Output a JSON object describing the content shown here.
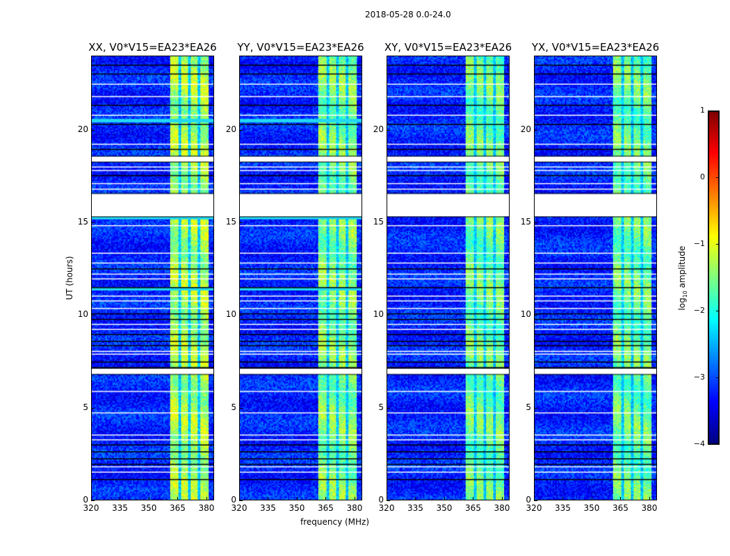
{
  "chart_data": {
    "type": "heatmap",
    "title": "2018-05-28 0.0-24.0",
    "xlabel": "frequency (MHz)",
    "ylabel": "UT (hours)",
    "xlim": [
      320,
      384
    ],
    "ylim": [
      0,
      24
    ],
    "xticks": [
      "320",
      "335",
      "350",
      "365",
      "380"
    ],
    "xtick_values": [
      320,
      335,
      350,
      365,
      380
    ],
    "yticks": [
      "0",
      "5",
      "10",
      "15",
      "20"
    ],
    "ytick_values": [
      0,
      5,
      10,
      15,
      20
    ],
    "panels": [
      {
        "title": "XX, V0*V15=EA23*EA26",
        "band_level": -1.3,
        "cyan_rows": [
          20.5,
          15.25,
          11.4
        ]
      },
      {
        "title": "YY, V0*V15=EA23*EA26",
        "band_level": -1.5,
        "cyan_rows": [
          20.5,
          15.25,
          11.4
        ]
      },
      {
        "title": "XY, V0*V15=EA23*EA26",
        "band_level": -1.6,
        "cyan_rows": []
      },
      {
        "title": "YX, V0*V15=EA23*EA26",
        "band_level": -1.6,
        "cyan_rows": []
      }
    ],
    "rfi_band_mhz": [
      361,
      381
    ],
    "band_gaps_mhz": [
      366,
      371,
      376
    ],
    "background_level": -3.2,
    "flagged_ranges_hours": [
      [
        15.33,
        16.56
      ],
      [
        18.3,
        18.58
      ],
      [
        6.8,
        7.1
      ]
    ],
    "flagged_lines_hours": [
      22.5,
      21.83,
      20.82,
      19.25,
      18.02,
      17.83,
      17.12,
      16.82,
      14.84,
      13.35,
      12.82,
      12.22,
      11.96,
      11.03,
      10.77,
      10.36,
      9.5,
      9.23,
      8.04,
      7.89,
      5.87,
      4.71,
      3.51,
      3.25,
      1.79,
      1.5
    ],
    "dark_lines_hours": [
      23.55,
      23.07,
      21.38,
      20.34,
      18.99,
      17.57,
      12.52,
      11.51,
      10.09,
      9.79,
      8.97,
      8.6,
      8.37,
      7.48,
      7.18,
      2.99,
      2.62,
      2.24,
      1.94,
      1.12
    ],
    "colorbar": {
      "label": "log10 amplitude",
      "range": [
        -4,
        1
      ],
      "ticks": [
        "1",
        "0",
        "−1",
        "−2",
        "−3",
        "−4"
      ],
      "tick_values": [
        1,
        0,
        -1,
        -2,
        -3,
        -4
      ],
      "colormap": "jet"
    }
  }
}
